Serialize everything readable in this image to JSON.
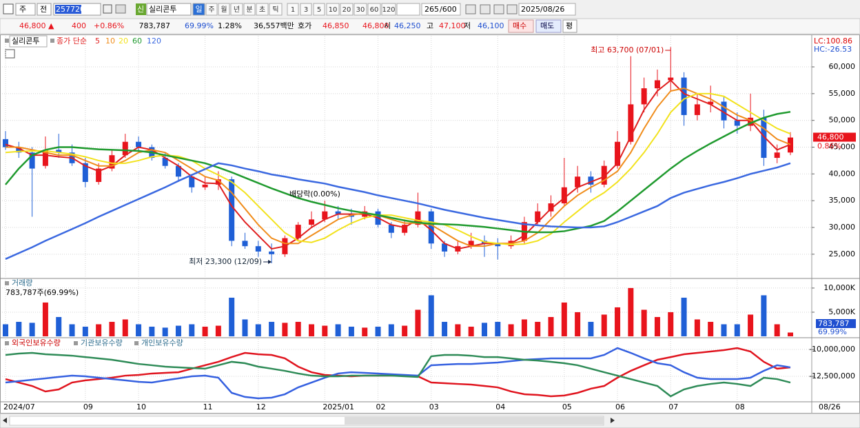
{
  "toolbar": {
    "period": "주",
    "all": "전",
    "code": "257720",
    "badge": "신",
    "name": "실리콘투",
    "intervals": [
      "일",
      "주",
      "월",
      "년",
      "분",
      "초",
      "틱",
      "1",
      "3",
      "5",
      "10",
      "20",
      "30",
      "60",
      "120"
    ],
    "count": "265",
    "max": "/600",
    "date": "2025/08/26"
  },
  "quote": {
    "price": "46,800 ▲",
    "change": "400",
    "rate": "+0.86%",
    "volume": "783,787",
    "vol_ratio": "69.99%",
    "turnover": "1.28%",
    "amount": "36,557백만",
    "bid_label": "호가",
    "ask": "46,850",
    "bid": "46,800",
    "open_label": "시",
    "open": "46,250",
    "high_label": "고",
    "high": "47,100",
    "low_label": "저",
    "low": "46,100",
    "buy": "매수",
    "sell": "매도",
    "avg": "평"
  },
  "chart_data": [
    {
      "type": "candlestick",
      "title": "실리콘투",
      "ma_label": "종가 단순",
      "up_color": "#e8141c",
      "down_color": "#1f5fd6",
      "categories": [
        "2024/07",
        null,
        null,
        null,
        null,
        null,
        "09",
        null,
        null,
        null,
        "10",
        null,
        null,
        null,
        null,
        "11",
        null,
        null,
        null,
        "12",
        null,
        null,
        null,
        null,
        "2025/01",
        null,
        null,
        null,
        "02",
        null,
        null,
        null,
        "03",
        null,
        null,
        null,
        null,
        "04",
        null,
        null,
        null,
        null,
        "05",
        null,
        null,
        null,
        "06",
        null,
        null,
        null,
        "07",
        null,
        null,
        null,
        null,
        "08",
        null,
        null,
        null,
        null
      ],
      "open": [
        46500,
        45000,
        44000,
        41500,
        44500,
        44000,
        42000,
        38500,
        41000,
        43500,
        46000,
        45000,
        43000,
        41500,
        39500,
        37500,
        38000,
        39000,
        27500,
        26500,
        25500,
        25000,
        28000,
        30500,
        31500,
        33000,
        32500,
        32000,
        33000,
        30500,
        29000,
        30500,
        33000,
        27000,
        25500,
        26500,
        27500,
        27000,
        26500,
        27500,
        31000,
        33000,
        34500,
        37500,
        39500,
        38000,
        41500,
        46000,
        53000,
        56000,
        57500,
        58000,
        51000,
        53000,
        53500,
        50000,
        49000,
        50500,
        43000,
        44000
      ],
      "high": [
        48000,
        46000,
        45000,
        47000,
        47500,
        45500,
        43000,
        42000,
        44500,
        47500,
        47000,
        45500,
        44000,
        42000,
        40000,
        39500,
        40500,
        39500,
        29000,
        27500,
        27000,
        28500,
        31000,
        33000,
        35000,
        34000,
        33500,
        34000,
        33500,
        31000,
        31500,
        36500,
        33500,
        27500,
        27500,
        29000,
        28500,
        28000,
        28500,
        32000,
        34500,
        36000,
        43000,
        41500,
        40500,
        42500,
        48000,
        62000,
        58000,
        59500,
        63700,
        59000,
        55000,
        56500,
        54500,
        51500,
        55000,
        52000,
        45500,
        47800
      ],
      "low": [
        44500,
        43000,
        32000,
        41000,
        43000,
        41500,
        37500,
        38000,
        40500,
        43000,
        44000,
        42500,
        41000,
        38500,
        36500,
        37000,
        37000,
        26500,
        26000,
        24500,
        23300,
        24500,
        27500,
        30000,
        31000,
        31500,
        30500,
        31500,
        30000,
        28000,
        28500,
        30000,
        26000,
        24500,
        25000,
        26000,
        24500,
        24000,
        26000,
        27000,
        30500,
        32000,
        34000,
        36500,
        36500,
        37500,
        41000,
        45500,
        51500,
        54500,
        55500,
        49000,
        50000,
        51500,
        48500,
        47500,
        48000,
        41500,
        42000,
        43500
      ],
      "close": [
        45000,
        44000,
        41000,
        44500,
        44000,
        42000,
        38500,
        41000,
        43500,
        46000,
        45000,
        43000,
        41500,
        39500,
        37500,
        38000,
        39000,
        27500,
        26500,
        25500,
        25000,
        28000,
        30500,
        31500,
        33000,
        32500,
        32000,
        33000,
        30500,
        29000,
        30500,
        33000,
        27000,
        25500,
        26500,
        27500,
        27000,
        26500,
        27500,
        31000,
        33000,
        34500,
        37500,
        39500,
        38000,
        41500,
        46000,
        53000,
        56000,
        57500,
        58000,
        51000,
        53000,
        53500,
        50000,
        49000,
        50500,
        43000,
        44000,
        46800
      ],
      "series": [
        {
          "name": "5",
          "color": "#e01e1e",
          "values": [
            45500,
            44800,
            43500,
            43500,
            43200,
            43000,
            41500,
            40500,
            41500,
            43500,
            45000,
            44500,
            43000,
            41500,
            39500,
            38300,
            38200,
            34000,
            31000,
            28500,
            26000,
            26500,
            28000,
            30000,
            31500,
            32500,
            32500,
            32500,
            31800,
            30500,
            30000,
            31500,
            29500,
            27000,
            26000,
            26500,
            27000,
            27000,
            27000,
            28500,
            31000,
            33500,
            35500,
            37500,
            38500,
            39500,
            42000,
            47000,
            52000,
            55500,
            57500,
            55000,
            54000,
            53000,
            51500,
            50000,
            50000,
            47000,
            44500,
            45500
          ]
        },
        {
          "name": "10",
          "color": "#f08c1a",
          "values": [
            45000,
            45000,
            44500,
            44000,
            43500,
            43500,
            42500,
            41500,
            41500,
            42500,
            44000,
            44500,
            44000,
            42500,
            41000,
            39500,
            38800,
            36500,
            33500,
            30500,
            28000,
            27000,
            27000,
            28500,
            30000,
            31500,
            32300,
            32700,
            32300,
            31500,
            30800,
            30800,
            30500,
            29000,
            27500,
            26500,
            26500,
            27000,
            27000,
            27500,
            29000,
            31500,
            34000,
            36000,
            37500,
            38800,
            40500,
            44000,
            48500,
            52500,
            55500,
            56000,
            55000,
            54000,
            52500,
            51000,
            50000,
            48500,
            46500,
            45500
          ]
        },
        {
          "name": "20",
          "color": "#f2e21c",
          "values": [
            44000,
            44200,
            44300,
            44300,
            44000,
            43700,
            43200,
            42500,
            42000,
            42000,
            42500,
            43200,
            43500,
            43300,
            42500,
            41000,
            39800,
            38500,
            36500,
            34000,
            31500,
            29000,
            27500,
            27200,
            28000,
            29500,
            30800,
            31800,
            32300,
            32300,
            31800,
            31300,
            31000,
            30500,
            29500,
            28300,
            27300,
            27000,
            26800,
            26900,
            27500,
            28800,
            31000,
            33000,
            35000,
            36500,
            38500,
            41000,
            44000,
            47500,
            51500,
            54000,
            55000,
            55000,
            54500,
            53000,
            51500,
            50000,
            48500,
            47500
          ]
        },
        {
          "name": "60",
          "color": "#1f9a2e",
          "values": [
            38000,
            41000,
            43500,
            44500,
            45000,
            45000,
            44800,
            44600,
            44500,
            44400,
            44300,
            44000,
            43500,
            43000,
            42500,
            42000,
            41200,
            40300,
            39300,
            38300,
            37300,
            36400,
            35500,
            34800,
            34200,
            33600,
            33100,
            32700,
            32300,
            31800,
            31300,
            30900,
            30700,
            30600,
            30500,
            30300,
            30100,
            29800,
            29500,
            29200,
            29100,
            29100,
            29300,
            29800,
            30300,
            31200,
            33000,
            35000,
            37000,
            39000,
            41000,
            42800,
            44300,
            45700,
            47000,
            48300,
            49500,
            50500,
            51200,
            51600
          ]
        },
        {
          "name": "120",
          "color": "#3a68e0",
          "values": [
            24100,
            25200,
            26300,
            27500,
            28600,
            29700,
            30800,
            32000,
            33100,
            34200,
            35300,
            36400,
            37500,
            38700,
            39800,
            40900,
            42000,
            41600,
            41000,
            40500,
            39900,
            39500,
            39000,
            38600,
            38200,
            37600,
            37100,
            36600,
            36000,
            35500,
            35000,
            34500,
            33900,
            33300,
            32800,
            32300,
            31800,
            31400,
            31000,
            30600,
            30400,
            30200,
            30100,
            30000,
            30000,
            30200,
            31000,
            32000,
            33000,
            34000,
            35500,
            36500,
            37200,
            37900,
            38500,
            39200,
            40000,
            40600,
            41200,
            42000
          ]
        }
      ],
      "ylim": [
        20600,
        65800
      ],
      "yticks": [
        {
          "value": 25000,
          "label": "25,000"
        },
        {
          "value": 30000,
          "label": "30,000"
        },
        {
          "value": 35000,
          "label": "35,000"
        },
        {
          "value": 40000,
          "label": "40,000"
        },
        {
          "value": 45000,
          "label": "45,000"
        },
        {
          "value": 50000,
          "label": "50,000"
        },
        {
          "value": 55000,
          "label": "55,000"
        },
        {
          "value": 60000,
          "label": "60,000"
        }
      ],
      "grid": true,
      "annotations": {
        "high": "최고 63,700 (07/01)",
        "low": "최저 23,300 (12/09)",
        "dividend": "배당락(0.00%)",
        "lc": "LC:100.86",
        "hc": "HC:-26.53",
        "change": "0.86%"
      },
      "last_price": {
        "value": 46800,
        "label": "46,800"
      },
      "last_date_label": "08/26"
    },
    {
      "type": "bar",
      "title": "거래량",
      "subtitle": "783,787주(69.99%)",
      "values": [
        2500,
        3000,
        2800,
        7000,
        4000,
        2500,
        2000,
        2500,
        3000,
        3500,
        2500,
        2000,
        1800,
        2200,
        2500,
        2000,
        2200,
        8000,
        3500,
        2500,
        3000,
        2800,
        3000,
        2500,
        2200,
        2500,
        2000,
        1800,
        2000,
        2500,
        2200,
        5500,
        8500,
        3000,
        2500,
        2000,
        2800,
        3000,
        2500,
        3500,
        3000,
        4000,
        7000,
        5000,
        3000,
        4500,
        6000,
        10000,
        5500,
        4000,
        5000,
        8000,
        3500,
        3000,
        2500,
        2500,
        4500,
        8500,
        2500,
        783.787
      ],
      "ylim": [
        0,
        11700
      ],
      "yticks": [
        {
          "value": 5000,
          "label": "5,000K"
        },
        {
          "value": 10000,
          "label": "10,000K"
        }
      ],
      "last_value": {
        "value": 783.787,
        "label": "783,787"
      },
      "ratio_label": "69.99%"
    },
    {
      "type": "line",
      "series": [
        {
          "name": "외국인보유수량",
          "color": "#e0141e",
          "values": [
            -12760000,
            -13080000,
            -13400000,
            -13910000,
            -13720000,
            -13080000,
            -12880000,
            -12760000,
            -12630000,
            -12440000,
            -12370000,
            -12240000,
            -12180000,
            -12120000,
            -11790000,
            -11470000,
            -11150000,
            -10710000,
            -10320000,
            -10450000,
            -10510000,
            -10830000,
            -11600000,
            -12120000,
            -12370000,
            -12440000,
            -12500000,
            -12440000,
            -12440000,
            -12440000,
            -12440000,
            -12500000,
            -13080000,
            -13140000,
            -13210000,
            -13270000,
            -13400000,
            -13530000,
            -13910000,
            -14170000,
            -14230000,
            -14360000,
            -14290000,
            -14040000,
            -13650000,
            -13400000,
            -12630000,
            -11990000,
            -11470000,
            -10960000,
            -10710000,
            -10450000,
            -10320000,
            -10190000,
            -10060000,
            -9870000,
            -10190000,
            -11150000,
            -11790000,
            -11670000
          ]
        },
        {
          "name": "기관보유수량",
          "color": "#3560e0",
          "values": [
            -13080000,
            -12950000,
            -12820000,
            -12690000,
            -12560000,
            -12440000,
            -12500000,
            -12630000,
            -12760000,
            -12880000,
            -13010000,
            -13080000,
            -12880000,
            -12690000,
            -12500000,
            -12440000,
            -12630000,
            -14040000,
            -14420000,
            -14550000,
            -14490000,
            -14170000,
            -13530000,
            -13080000,
            -12630000,
            -12240000,
            -12120000,
            -12180000,
            -12240000,
            -12310000,
            -12370000,
            -12440000,
            -11470000,
            -11410000,
            -11350000,
            -11350000,
            -11280000,
            -11220000,
            -11090000,
            -10960000,
            -10900000,
            -10830000,
            -10830000,
            -10830000,
            -10830000,
            -10510000,
            -9870000,
            -10320000,
            -10830000,
            -11280000,
            -11470000,
            -12120000,
            -12630000,
            -12760000,
            -12760000,
            -12760000,
            -12630000,
            -11990000,
            -11470000,
            -11670000
          ]
        },
        {
          "name": "개인보유수량",
          "color": "#2e8b57",
          "values": [
            -10510000,
            -10380000,
            -10320000,
            -10450000,
            -10510000,
            -10580000,
            -10710000,
            -10830000,
            -10960000,
            -11150000,
            -11350000,
            -11470000,
            -11600000,
            -11670000,
            -11730000,
            -11790000,
            -11470000,
            -11150000,
            -11280000,
            -11600000,
            -11790000,
            -11990000,
            -12240000,
            -12440000,
            -12500000,
            -12500000,
            -12440000,
            -12440000,
            -12440000,
            -12440000,
            -12500000,
            -12560000,
            -10640000,
            -10510000,
            -10510000,
            -10580000,
            -10710000,
            -10710000,
            -10830000,
            -10960000,
            -11030000,
            -11150000,
            -11280000,
            -11470000,
            -11790000,
            -12120000,
            -12440000,
            -12760000,
            -13080000,
            -13400000,
            -14360000,
            -13720000,
            -13400000,
            -13210000,
            -13080000,
            -13210000,
            -13400000,
            -12630000,
            -12760000,
            -13080000
          ]
        }
      ],
      "ylim": [
        -14810000,
        -9100000
      ],
      "yticks": [
        {
          "value": -12500000,
          "label": "-12,500,000"
        },
        {
          "value": -10000000,
          "label": "-10,000,000"
        }
      ]
    }
  ]
}
